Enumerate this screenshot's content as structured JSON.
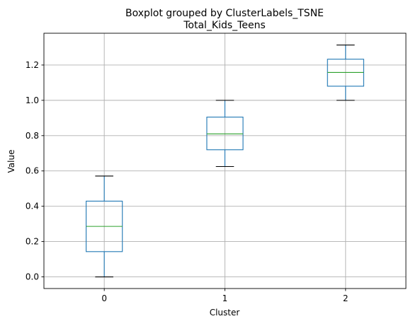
{
  "chart_data": {
    "type": "boxplot",
    "suptitle": "Boxplot grouped by ClusterLabels_TSNE",
    "title": "Total_Kids_Teens",
    "xlabel": "Cluster",
    "ylabel": "Value",
    "categories": [
      "0",
      "1",
      "2"
    ],
    "ylim": [
      -0.066,
      1.38
    ],
    "yticks": [
      0.0,
      0.2,
      0.4,
      0.6,
      0.8,
      1.0,
      1.2
    ],
    "ytick_labels": [
      "0.0",
      "0.2",
      "0.4",
      "0.6",
      "0.8",
      "1.0",
      "1.2"
    ],
    "grid": true,
    "boxes": [
      {
        "category": "0",
        "whisker_low": 0.0,
        "q1": 0.143,
        "median": 0.286,
        "q3": 0.429,
        "whisker_high": 0.571
      },
      {
        "category": "1",
        "whisker_low": 0.625,
        "q1": 0.72,
        "median": 0.81,
        "q3": 0.905,
        "whisker_high": 1.0
      },
      {
        "category": "2",
        "whisker_low": 1.0,
        "q1": 1.08,
        "median": 1.158,
        "q3": 1.233,
        "whisker_high": 1.313
      }
    ],
    "colors": {
      "box": "#1f77b4",
      "median": "#2ca02c",
      "grid": "#b0b0b0"
    }
  }
}
